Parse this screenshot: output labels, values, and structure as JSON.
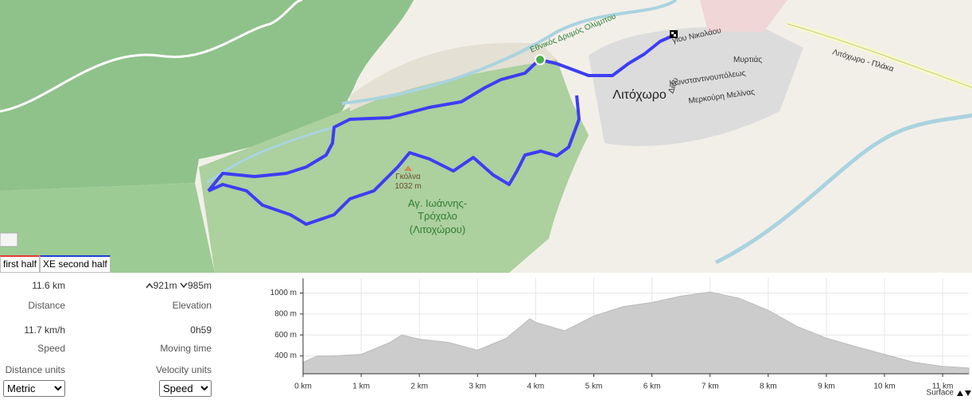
{
  "map": {
    "town": "Λιτόχωρο",
    "streets": [
      "γίου Νικολάου",
      "Μυρτιάς",
      "Κωνσταντινουπόλεως",
      "Δίου",
      "Μερκούρη Μελίνας",
      "Λιτόχωρο - Πλάκα"
    ],
    "park": "Εθνικός Δρυμός Ολύμπου",
    "peak_name": "Γκόλνα",
    "peak_height": "1032 m",
    "area_label": [
      "Αγ. Ιωάννης-",
      "Τρόχαλο",
      "(Λιτοχώρου)"
    ],
    "tabs": [
      "first half",
      "XE second half"
    ]
  },
  "stats": {
    "distance": {
      "value": "11.6 km",
      "label": "Distance"
    },
    "elevation": {
      "up": "921m",
      "down": "985m",
      "label": "Elevation"
    },
    "speed": {
      "value": "11.7 km/h",
      "label": "Speed"
    },
    "moving_time": {
      "value": "0h59",
      "label": "Moving time"
    }
  },
  "settings": {
    "distance_units": {
      "label": "Distance units",
      "selected": "Metric"
    },
    "velocity_units": {
      "label": "Velocity units",
      "selected": "Speed"
    }
  },
  "chart_data": {
    "type": "area",
    "color": "#cccccc",
    "x": [
      0,
      0.25,
      0.5,
      1,
      1.5,
      1.7,
      2,
      2.5,
      3,
      3.5,
      3.9,
      4,
      4.5,
      5,
      5.5,
      6,
      6.5,
      7,
      7.5,
      8,
      8.5,
      9,
      9.5,
      10,
      10.5,
      11,
      11.45
    ],
    "values": [
      340,
      400,
      400,
      415,
      530,
      600,
      560,
      530,
      455,
      570,
      755,
      720,
      640,
      780,
      870,
      910,
      970,
      1010,
      950,
      835,
      680,
      570,
      490,
      415,
      340,
      300,
      285
    ],
    "xlim": [
      0,
      11.45
    ],
    "ylim": [
      230,
      1140
    ],
    "xticks": [
      {
        "value": 0,
        "label": "0 km"
      },
      {
        "value": 1,
        "label": "1 km"
      },
      {
        "value": 2,
        "label": "2 km"
      },
      {
        "value": 3,
        "label": "3 km"
      },
      {
        "value": 4,
        "label": "4 km"
      },
      {
        "value": 5,
        "label": "5 km"
      },
      {
        "value": 6,
        "label": "6 km"
      },
      {
        "value": 7,
        "label": "7 km"
      },
      {
        "value": 8,
        "label": "8 km"
      },
      {
        "value": 9,
        "label": "9 km"
      },
      {
        "value": 10,
        "label": "10 km"
      },
      {
        "value": 11,
        "label": "11 km"
      }
    ],
    "yticks": [
      {
        "value": 400,
        "label": "400 m"
      },
      {
        "value": 600,
        "label": "600 m"
      },
      {
        "value": 800,
        "label": "800 m"
      },
      {
        "value": 1000,
        "label": "1000 m"
      }
    ],
    "grid": true,
    "footer": "Surface"
  }
}
